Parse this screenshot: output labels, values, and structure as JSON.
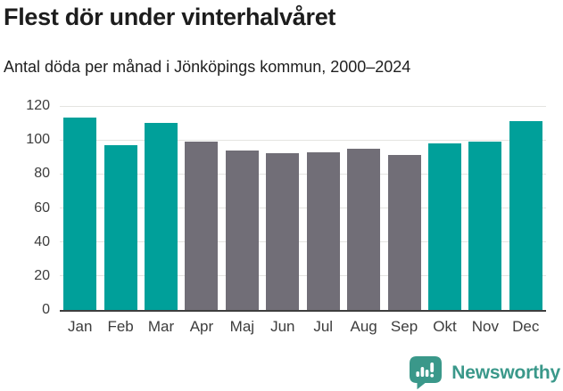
{
  "header": {
    "title": "Flest dör under vinterhalvåret",
    "subtitle": "Antal döda per månad i Jönköpings kommun, 2000–2024"
  },
  "chart_data": {
    "type": "bar",
    "title": "Flest dör under vinterhalvåret",
    "subtitle": "Antal döda per månad i Jönköpings kommun, 2000–2024",
    "categories": [
      "Jan",
      "Feb",
      "Mar",
      "Apr",
      "Maj",
      "Jun",
      "Jul",
      "Aug",
      "Sep",
      "Okt",
      "Nov",
      "Dec"
    ],
    "values": [
      113,
      97,
      110,
      99,
      94,
      92,
      93,
      95,
      91,
      98,
      99,
      111
    ],
    "highlighted_categories": [
      "Jan",
      "Feb",
      "Mar",
      "Okt",
      "Nov",
      "Dec"
    ],
    "colors": {
      "highlighted": "#00a09a",
      "default": "#716e77",
      "gridline": "#e4e4e1",
      "axis_line": "#3e3e3e",
      "tick_text": "#3c3c3c"
    },
    "xlabel": "",
    "ylabel": "",
    "ylim": [
      0,
      120
    ],
    "yticks": [
      0,
      20,
      40,
      60,
      80,
      100,
      120
    ],
    "grid": true,
    "legend": "none"
  },
  "footer": {
    "brand": "Newsworthy",
    "brand_color": "#3a988a",
    "logo_icon": "speech-bubble-bar-chart-exclamation"
  }
}
